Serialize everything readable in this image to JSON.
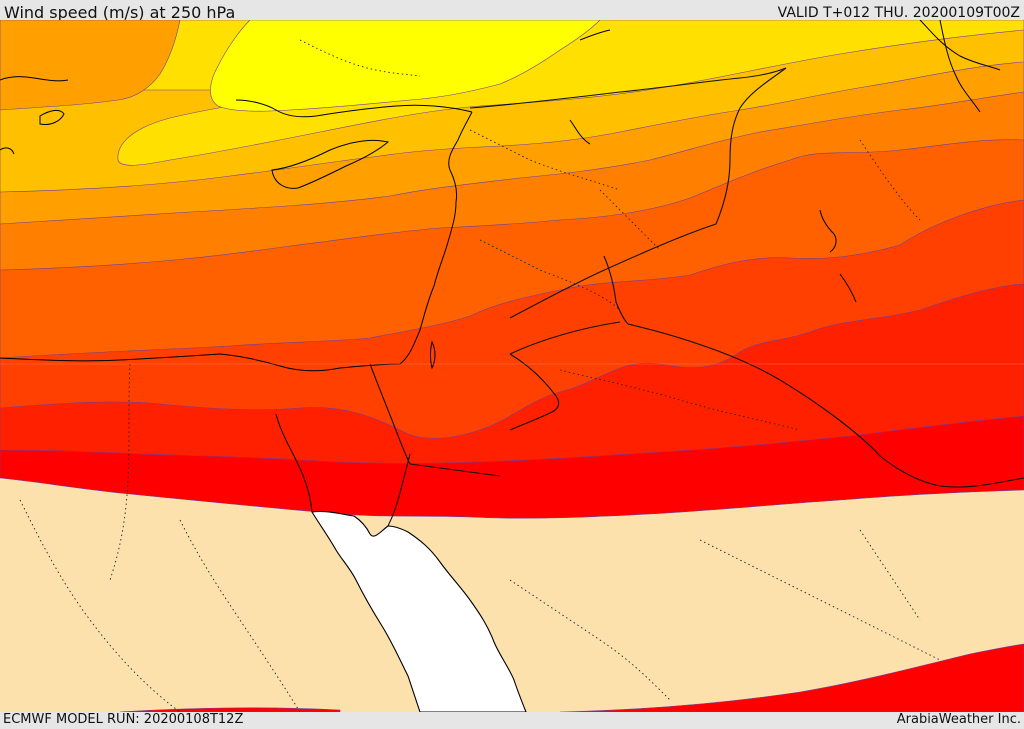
{
  "header": {
    "title": "Wind speed (m/s) at 250 hPa",
    "valid_time": "VALID T+012 THU. 20200109T00Z"
  },
  "footer": {
    "model_run": "ECMWF MODEL RUN: 20200108T12Z",
    "credit": "ArabiaWeather Inc."
  },
  "colors": {
    "land_calm": "#fde1ad",
    "sea": "#ffffff",
    "band_yellow": "#ffff00",
    "band_gold": "#ffe000",
    "band_amber": "#ffc000",
    "band_orange_light": "#ffa000",
    "band_orange": "#ff8000",
    "band_orange_dark": "#ff6000",
    "band_red_orange": "#ff4000",
    "band_red_dark": "#ff2000",
    "band_red": "#ff0000"
  }
}
